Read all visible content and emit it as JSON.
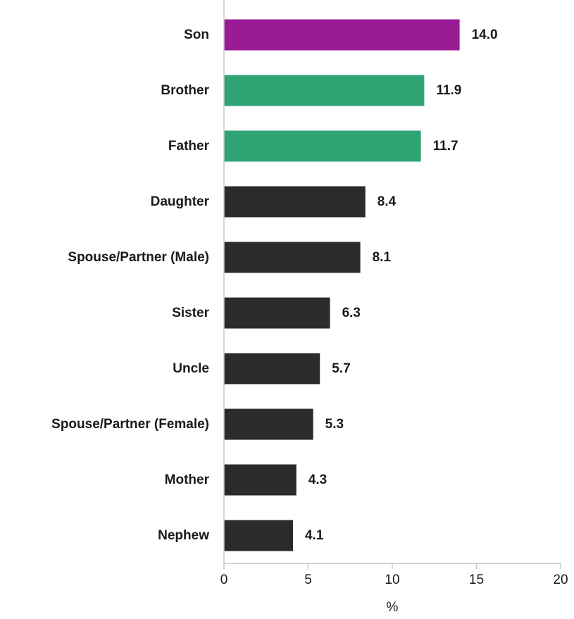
{
  "chart_data": {
    "type": "bar",
    "orientation": "horizontal",
    "categories": [
      "Son",
      "Brother",
      "Father",
      "Daughter",
      "Spouse/Partner (Male)",
      "Sister",
      "Uncle",
      "Spouse/Partner (Female)",
      "Mother",
      "Nephew"
    ],
    "values": [
      14.0,
      11.9,
      11.7,
      8.4,
      8.1,
      6.3,
      5.7,
      5.3,
      4.3,
      4.1
    ],
    "value_labels": [
      "14.0",
      "11.9",
      "11.7",
      "8.4",
      "8.1",
      "6.3",
      "5.7",
      "5.3",
      "4.3",
      "4.1"
    ],
    "bar_colors": [
      "#9a1b96",
      "#2fa576",
      "#2fa576",
      "#2b2b2b",
      "#2b2b2b",
      "#2b2b2b",
      "#2b2b2b",
      "#2b2b2b",
      "#2b2b2b",
      "#2b2b2b"
    ],
    "xlabel": "%",
    "xlim": [
      0,
      20
    ],
    "xticks": [
      "0",
      "5",
      "10",
      "15",
      "20"
    ],
    "grid": false,
    "legend": "none"
  }
}
